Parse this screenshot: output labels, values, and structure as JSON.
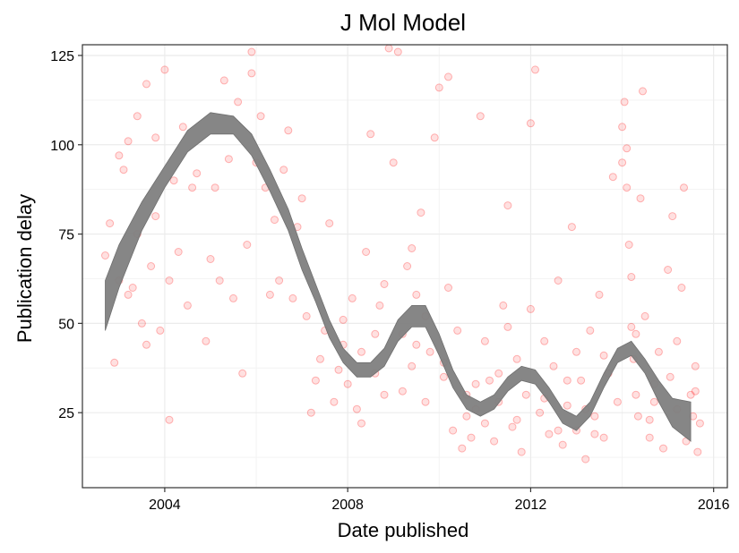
{
  "chart_data": {
    "type": "scatter",
    "title": "J Mol Model",
    "xlabel": "Date published",
    "ylabel": "Publication delay",
    "xlim": [
      2002.2,
      2016.3
    ],
    "ylim": [
      4,
      128
    ],
    "x_ticks": [
      2004,
      2008,
      2012,
      2016
    ],
    "x_tick_labels": [
      "2004",
      "2008",
      "2012",
      "2016"
    ],
    "y_ticks": [
      25,
      50,
      75,
      100,
      125
    ],
    "y_tick_labels": [
      "25",
      "50",
      "75",
      "100",
      "125"
    ],
    "grid": true,
    "legend": "none",
    "point_color": "#ff0000",
    "point_alpha": 0.12,
    "band_color": "#808080",
    "smooth": {
      "name": "",
      "x": [
        2002.7,
        2003.0,
        2003.5,
        2004.0,
        2004.5,
        2005.0,
        2005.5,
        2005.9,
        2006.3,
        2006.7,
        2007.0,
        2007.3,
        2007.6,
        2007.9,
        2008.2,
        2008.5,
        2008.8,
        2009.1,
        2009.4,
        2009.7,
        2010.0,
        2010.3,
        2010.6,
        2010.9,
        2011.2,
        2011.5,
        2011.8,
        2012.1,
        2012.4,
        2012.7,
        2013.0,
        2013.3,
        2013.6,
        2013.9,
        2014.2,
        2014.5,
        2014.8,
        2015.1,
        2015.5
      ],
      "y": [
        55,
        66,
        80,
        91,
        101,
        106,
        105,
        100,
        90,
        79,
        68,
        58,
        48,
        41,
        37,
        37,
        41,
        48,
        52,
        52,
        44,
        35,
        28,
        26,
        28,
        33,
        36,
        35,
        30,
        24,
        22,
        26,
        34,
        41,
        43,
        38,
        31,
        25,
        23
      ],
      "lower": [
        48,
        60,
        76,
        88,
        98,
        103,
        103,
        97,
        87,
        76,
        65,
        56,
        46,
        39,
        35,
        35,
        38,
        45,
        49,
        49,
        41,
        32,
        26,
        24,
        26,
        31,
        34,
        33,
        28,
        22,
        20,
        24,
        32,
        39,
        41,
        36,
        28,
        21,
        17
      ],
      "upper": [
        62,
        72,
        84,
        94,
        104,
        109,
        108,
        103,
        93,
        82,
        71,
        61,
        51,
        43,
        39,
        39,
        43,
        51,
        55,
        55,
        47,
        37,
        30,
        28,
        30,
        35,
        38,
        37,
        32,
        26,
        24,
        28,
        36,
        43,
        45,
        40,
        34,
        29,
        28
      ]
    },
    "points": [
      [
        2002.7,
        69
      ],
      [
        2002.8,
        78
      ],
      [
        2002.9,
        39
      ],
      [
        2003.0,
        97
      ],
      [
        2003.1,
        93
      ],
      [
        2003.2,
        101
      ],
      [
        2003.3,
        60
      ],
      [
        2003.4,
        108
      ],
      [
        2003.5,
        50
      ],
      [
        2003.6,
        117
      ],
      [
        2003.7,
        66
      ],
      [
        2003.8,
        102
      ],
      [
        2003.9,
        48
      ],
      [
        2004.0,
        121
      ],
      [
        2004.1,
        23
      ],
      [
        2004.2,
        90
      ],
      [
        2004.4,
        105
      ],
      [
        2004.6,
        88
      ],
      [
        2003.0,
        62
      ],
      [
        2003.2,
        58
      ],
      [
        2003.4,
        75
      ],
      [
        2003.6,
        44
      ],
      [
        2003.8,
        80
      ],
      [
        2004.1,
        62
      ],
      [
        2004.3,
        70
      ],
      [
        2004.5,
        55
      ],
      [
        2004.7,
        92
      ],
      [
        2004.9,
        45
      ],
      [
        2005.0,
        68
      ],
      [
        2005.1,
        88
      ],
      [
        2005.2,
        62
      ],
      [
        2005.3,
        118
      ],
      [
        2005.4,
        96
      ],
      [
        2005.5,
        57
      ],
      [
        2005.6,
        112
      ],
      [
        2005.7,
        36
      ],
      [
        2005.8,
        72
      ],
      [
        2005.9,
        126
      ],
      [
        2005.9,
        120
      ],
      [
        2006.0,
        95
      ],
      [
        2006.1,
        108
      ],
      [
        2006.2,
        88
      ],
      [
        2006.3,
        58
      ],
      [
        2006.4,
        79
      ],
      [
        2006.5,
        62
      ],
      [
        2006.6,
        93
      ],
      [
        2006.7,
        104
      ],
      [
        2006.8,
        57
      ],
      [
        2006.9,
        77
      ],
      [
        2007.0,
        85
      ],
      [
        2007.1,
        52
      ],
      [
        2007.2,
        25
      ],
      [
        2007.3,
        34
      ],
      [
        2007.4,
        40
      ],
      [
        2007.5,
        48
      ],
      [
        2007.6,
        78
      ],
      [
        2007.7,
        28
      ],
      [
        2007.8,
        37
      ],
      [
        2007.9,
        44
      ],
      [
        2008.0,
        33
      ],
      [
        2008.1,
        57
      ],
      [
        2008.2,
        26
      ],
      [
        2008.3,
        42
      ],
      [
        2008.4,
        70
      ],
      [
        2008.5,
        103
      ],
      [
        2008.6,
        36
      ],
      [
        2008.7,
        55
      ],
      [
        2008.8,
        30
      ],
      [
        2008.9,
        127
      ],
      [
        2009.0,
        95
      ],
      [
        2009.1,
        126
      ],
      [
        2009.2,
        47
      ],
      [
        2009.3,
        66
      ],
      [
        2009.4,
        38
      ],
      [
        2009.5,
        58
      ],
      [
        2009.6,
        81
      ],
      [
        2009.7,
        28
      ],
      [
        2009.8,
        42
      ],
      [
        2009.9,
        102
      ],
      [
        2010.0,
        116
      ],
      [
        2010.1,
        35
      ],
      [
        2010.2,
        119
      ],
      [
        2010.3,
        20
      ],
      [
        2010.4,
        48
      ],
      [
        2010.5,
        15
      ],
      [
        2010.6,
        30
      ],
      [
        2010.7,
        18
      ],
      [
        2010.8,
        26
      ],
      [
        2010.9,
        108
      ],
      [
        2011.0,
        22
      ],
      [
        2011.1,
        34
      ],
      [
        2011.2,
        17
      ],
      [
        2011.3,
        28
      ],
      [
        2011.4,
        55
      ],
      [
        2011.5,
        83
      ],
      [
        2011.6,
        21
      ],
      [
        2011.7,
        40
      ],
      [
        2011.8,
        14
      ],
      [
        2011.9,
        30
      ],
      [
        2012.0,
        106
      ],
      [
        2012.1,
        121
      ],
      [
        2012.2,
        25
      ],
      [
        2012.3,
        45
      ],
      [
        2012.4,
        19
      ],
      [
        2012.5,
        38
      ],
      [
        2012.6,
        62
      ],
      [
        2012.7,
        16
      ],
      [
        2012.8,
        27
      ],
      [
        2012.9,
        77
      ],
      [
        2013.0,
        20
      ],
      [
        2013.1,
        34
      ],
      [
        2013.2,
        12
      ],
      [
        2013.3,
        48
      ],
      [
        2013.4,
        24
      ],
      [
        2013.5,
        58
      ],
      [
        2013.6,
        18
      ],
      [
        2013.7,
        36
      ],
      [
        2013.8,
        91
      ],
      [
        2013.9,
        28
      ],
      [
        2014.0,
        105
      ],
      [
        2014.05,
        112
      ],
      [
        2014.1,
        88
      ],
      [
        2014.15,
        72
      ],
      [
        2014.2,
        63
      ],
      [
        2014.25,
        40
      ],
      [
        2014.3,
        30
      ],
      [
        2014.35,
        24
      ],
      [
        2014.4,
        85
      ],
      [
        2014.45,
        115
      ],
      [
        2014.5,
        52
      ],
      [
        2014.6,
        18
      ],
      [
        2014.7,
        28
      ],
      [
        2014.8,
        42
      ],
      [
        2014.9,
        15
      ],
      [
        2015.0,
        65
      ],
      [
        2015.05,
        35
      ],
      [
        2015.1,
        80
      ],
      [
        2015.2,
        26
      ],
      [
        2015.3,
        60
      ],
      [
        2015.35,
        88
      ],
      [
        2015.4,
        17
      ],
      [
        2015.5,
        30
      ],
      [
        2015.55,
        24
      ],
      [
        2015.6,
        38
      ],
      [
        2015.65,
        14
      ],
      [
        2015.7,
        22
      ],
      [
        2008.3,
        22
      ],
      [
        2008.6,
        47
      ],
      [
        2009.2,
        31
      ],
      [
        2009.5,
        44
      ],
      [
        2009.7,
        52
      ],
      [
        2010.1,
        39
      ],
      [
        2010.6,
        24
      ],
      [
        2011.0,
        45
      ],
      [
        2011.3,
        36
      ],
      [
        2011.7,
        23
      ],
      [
        2012.3,
        29
      ],
      [
        2012.8,
        34
      ],
      [
        2013.2,
        26
      ],
      [
        2013.6,
        41
      ],
      [
        2014.2,
        49
      ],
      [
        2014.7,
        33
      ],
      [
        2007.9,
        51
      ],
      [
        2008.8,
        61
      ],
      [
        2009.4,
        71
      ],
      [
        2010.2,
        60
      ],
      [
        2010.8,
        33
      ],
      [
        2011.5,
        49
      ],
      [
        2012.0,
        54
      ],
      [
        2012.6,
        20
      ],
      [
        2013.0,
        42
      ],
      [
        2013.4,
        19
      ],
      [
        2014.0,
        95
      ],
      [
        2014.1,
        99
      ],
      [
        2014.3,
        47
      ],
      [
        2014.6,
        23
      ],
      [
        2015.2,
        45
      ],
      [
        2015.6,
        31
      ]
    ]
  }
}
